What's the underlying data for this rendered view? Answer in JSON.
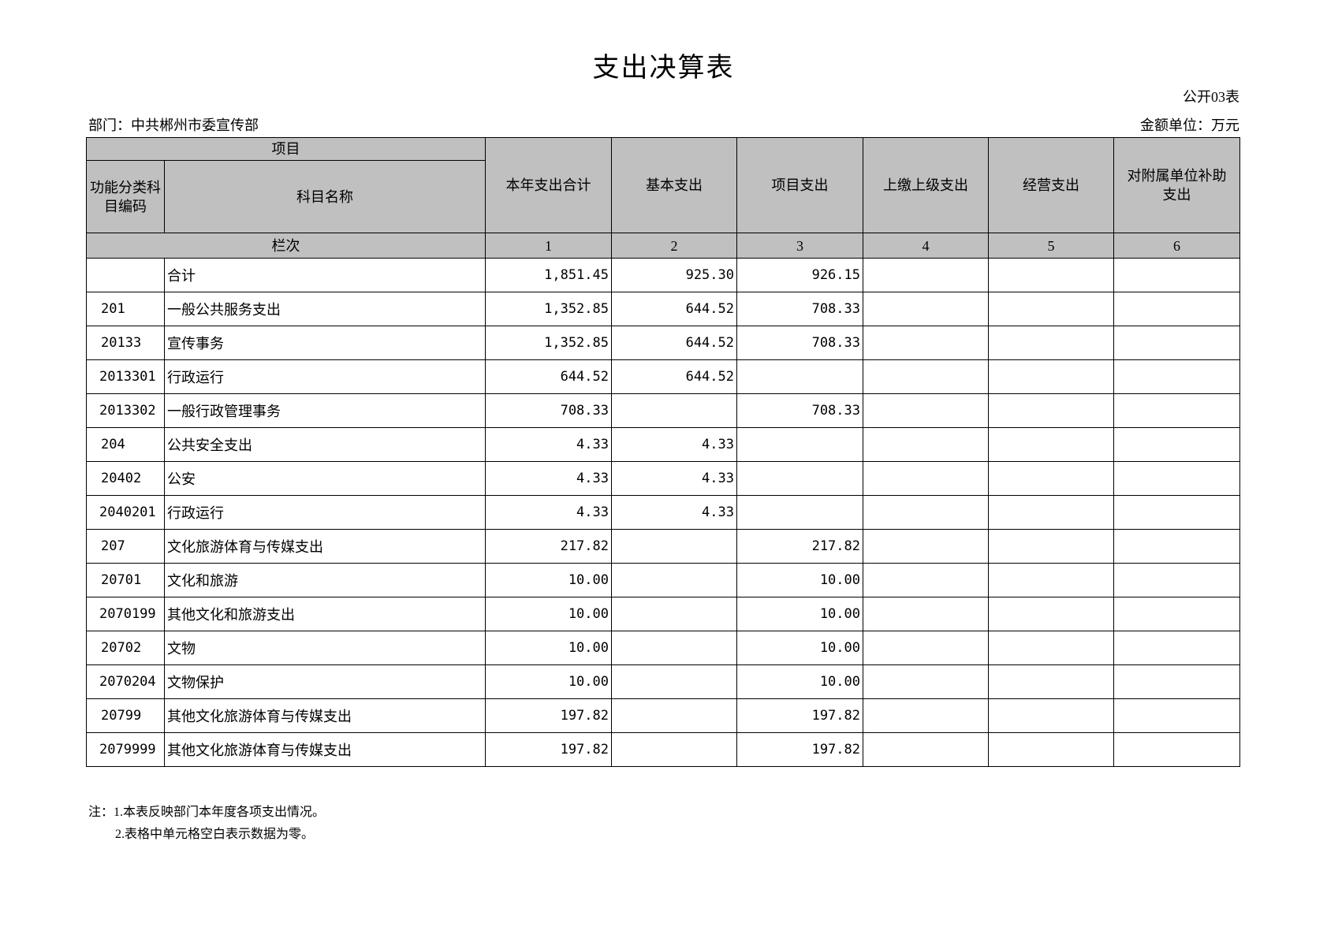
{
  "title": "支出决算表",
  "form_no": "公开03表",
  "department": "部门：中共郴州市委宣传部",
  "unit": "金额单位：万元",
  "header": {
    "item": "项目",
    "code": "功能分类科目编码",
    "name": "科目名称",
    "columns": [
      "本年支出合计",
      "基本支出",
      "项目支出",
      "上缴上级支出",
      "经营支出",
      "对附属单位补助支出"
    ],
    "row_label": "栏次",
    "column_numbers": [
      "1",
      "2",
      "3",
      "4",
      "5",
      "6"
    ]
  },
  "rows": [
    {
      "code": "",
      "name": "合计",
      "total": "1,851.45",
      "basic": "925.30",
      "project": "926.15",
      "upper": "",
      "business": "",
      "subsidy": ""
    },
    {
      "code": "201",
      "name": "一般公共服务支出",
      "total": "1,352.85",
      "basic": "644.52",
      "project": "708.33",
      "upper": "",
      "business": "",
      "subsidy": ""
    },
    {
      "code": "20133",
      "name": "宣传事务",
      "total": "1,352.85",
      "basic": "644.52",
      "project": "708.33",
      "upper": "",
      "business": "",
      "subsidy": ""
    },
    {
      "code": "2013301",
      "name": "行政运行",
      "total": "644.52",
      "basic": "644.52",
      "project": "",
      "upper": "",
      "business": "",
      "subsidy": ""
    },
    {
      "code": "2013302",
      "name": "一般行政管理事务",
      "total": "708.33",
      "basic": "",
      "project": "708.33",
      "upper": "",
      "business": "",
      "subsidy": ""
    },
    {
      "code": "204",
      "name": "公共安全支出",
      "total": "4.33",
      "basic": "4.33",
      "project": "",
      "upper": "",
      "business": "",
      "subsidy": ""
    },
    {
      "code": "20402",
      "name": "公安",
      "total": "4.33",
      "basic": "4.33",
      "project": "",
      "upper": "",
      "business": "",
      "subsidy": ""
    },
    {
      "code": "2040201",
      "name": "行政运行",
      "total": "4.33",
      "basic": "4.33",
      "project": "",
      "upper": "",
      "business": "",
      "subsidy": ""
    },
    {
      "code": "207",
      "name": "文化旅游体育与传媒支出",
      "total": "217.82",
      "basic": "",
      "project": "217.82",
      "upper": "",
      "business": "",
      "subsidy": ""
    },
    {
      "code": "20701",
      "name": "文化和旅游",
      "total": "10.00",
      "basic": "",
      "project": "10.00",
      "upper": "",
      "business": "",
      "subsidy": ""
    },
    {
      "code": "2070199",
      "name": "其他文化和旅游支出",
      "total": "10.00",
      "basic": "",
      "project": "10.00",
      "upper": "",
      "business": "",
      "subsidy": ""
    },
    {
      "code": "20702",
      "name": "文物",
      "total": "10.00",
      "basic": "",
      "project": "10.00",
      "upper": "",
      "business": "",
      "subsidy": ""
    },
    {
      "code": "2070204",
      "name": "文物保护",
      "total": "10.00",
      "basic": "",
      "project": "10.00",
      "upper": "",
      "business": "",
      "subsidy": ""
    },
    {
      "code": "20799",
      "name": "其他文化旅游体育与传媒支出",
      "total": "197.82",
      "basic": "",
      "project": "197.82",
      "upper": "",
      "business": "",
      "subsidy": ""
    },
    {
      "code": "2079999",
      "name": "其他文化旅游体育与传媒支出",
      "total": "197.82",
      "basic": "",
      "project": "197.82",
      "upper": "",
      "business": "",
      "subsidy": ""
    }
  ],
  "notes": [
    "注：1.本表反映部门本年度各项支出情况。",
    "2.表格中单元格空白表示数据为零。"
  ]
}
